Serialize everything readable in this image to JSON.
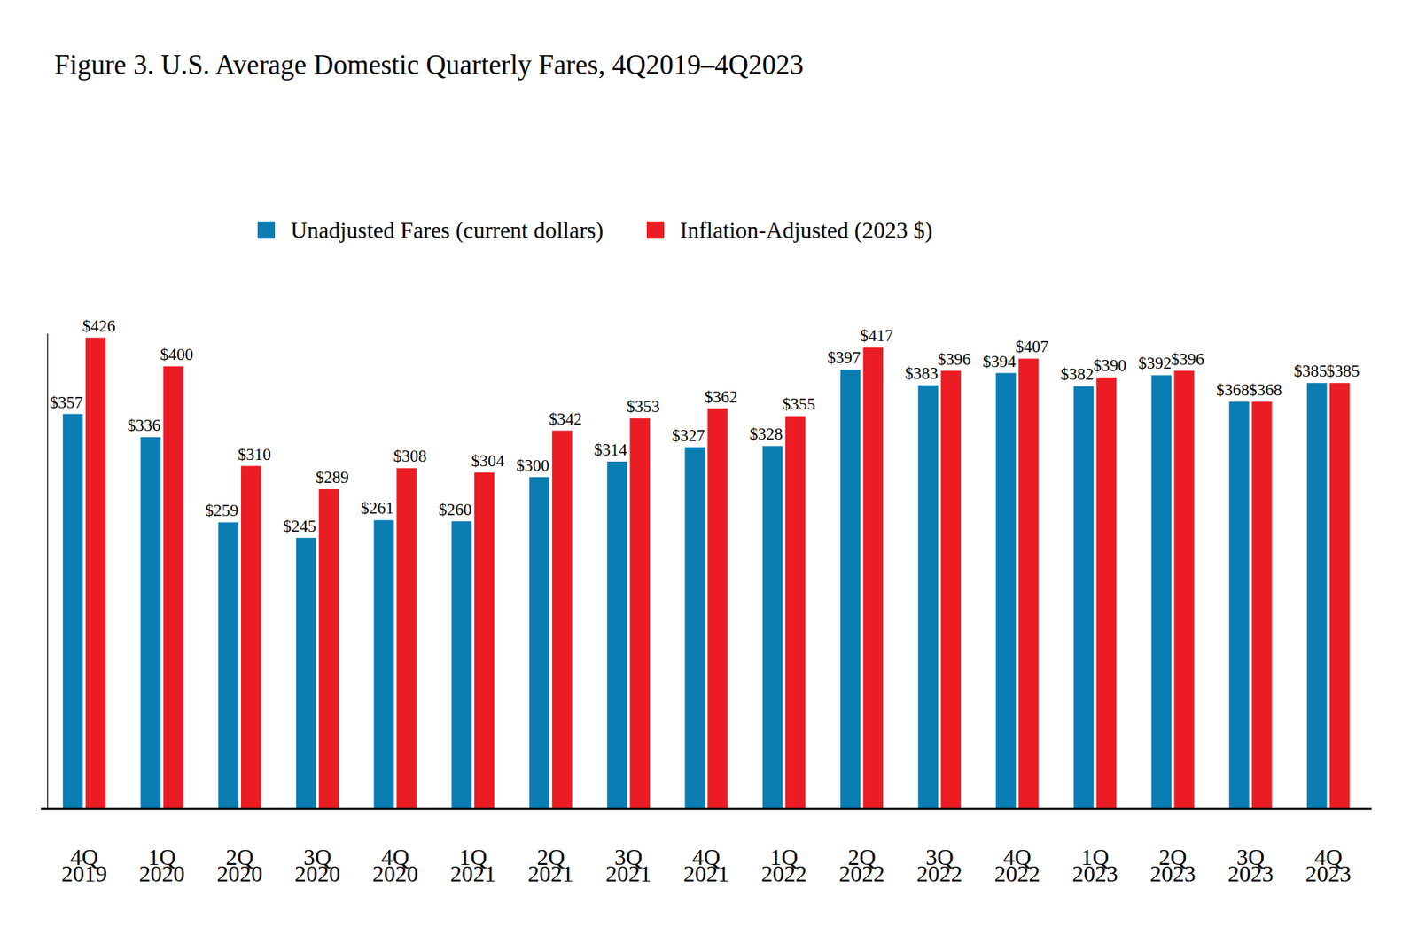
{
  "chart_data": {
    "type": "bar",
    "title": "Figure 3. U.S. Average Domestic Quarterly Fares, 4Q2019–4Q2023",
    "categories": [
      "4Q 2019",
      "1Q 2020",
      "2Q 2020",
      "3Q 2020",
      "4Q 2020",
      "1Q 2021",
      "2Q 2021",
      "3Q 2021",
      "4Q 2021",
      "1Q 2022",
      "2Q 2022",
      "3Q 2022",
      "4Q 2022",
      "1Q 2023",
      "2Q 2023",
      "3Q 2023",
      "4Q 2023"
    ],
    "series": [
      {
        "name": "Unadjusted Fares (current dollars)",
        "color": "#0a7db3",
        "values": [
          357,
          336,
          259,
          245,
          261,
          260,
          300,
          314,
          327,
          328,
          397,
          383,
          394,
          382,
          392,
          368,
          385
        ],
        "value_labels": [
          "$357",
          "$336",
          "$259",
          "$245",
          "$261",
          "$260",
          "$300",
          "$314",
          "$327",
          "$328",
          "$397",
          "$383",
          "$394",
          "$382",
          "$392",
          "$368",
          "$385"
        ]
      },
      {
        "name": "Inflation-Adjusted (2023 $)",
        "color": "#ec1c24",
        "values": [
          426,
          400,
          310,
          289,
          308,
          304,
          342,
          353,
          362,
          355,
          417,
          396,
          407,
          390,
          396,
          368,
          385
        ],
        "value_labels": [
          "$426",
          "$400",
          "$310",
          "$289",
          "$308",
          "$304",
          "$342",
          "$353",
          "$362",
          "$355",
          "$417",
          "$396",
          "$407",
          "$390",
          "$396",
          "$368",
          "$385"
        ]
      }
    ],
    "ylim": [
      0,
      430
    ],
    "grid": false,
    "legend": "top",
    "data_labels": true,
    "tick_labels": "x"
  }
}
